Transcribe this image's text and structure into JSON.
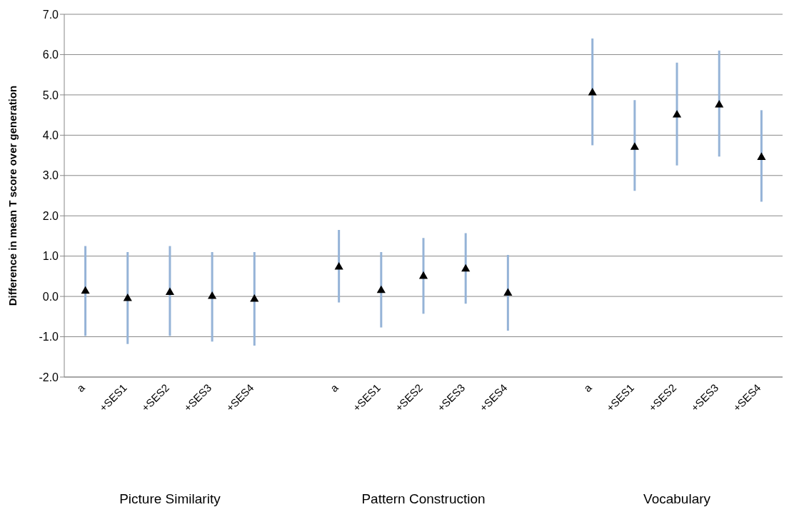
{
  "chart_data": {
    "type": "scatter",
    "ylabel": "Difference in mean T score  over generation",
    "categories": [
      "a",
      "+SES1",
      "+SES2",
      "+SES3",
      "+SES4",
      null,
      "a",
      "+SES1",
      "+SES2",
      "+SES3",
      "+SES4",
      null,
      "a",
      "+SES1",
      "+SES2",
      "+SES3",
      "+SES4"
    ],
    "values": [
      0.13,
      -0.05,
      0.1,
      0.0,
      -0.07,
      null,
      0.73,
      0.15,
      0.5,
      0.68,
      0.08,
      null,
      5.05,
      3.7,
      4.5,
      4.75,
      3.45
    ],
    "errors": [
      [
        -0.98,
        1.25
      ],
      [
        -1.18,
        1.1
      ],
      [
        -0.98,
        1.25
      ],
      [
        -1.12,
        1.1
      ],
      [
        -1.22,
        1.1
      ],
      null,
      [
        -0.15,
        1.65
      ],
      [
        -0.77,
        1.1
      ],
      [
        -0.43,
        1.45
      ],
      [
        -0.18,
        1.57
      ],
      [
        -0.85,
        1.03
      ],
      null,
      [
        3.75,
        6.4
      ],
      [
        2.62,
        4.87
      ],
      [
        3.25,
        5.8
      ],
      [
        3.47,
        6.1
      ],
      [
        2.35,
        4.62
      ]
    ],
    "color": "#000000",
    "marker": "triangle",
    "grid": "y",
    "ylim": [
      -2,
      7
    ],
    "yticks": [
      {
        "value": -2,
        "label": "-2.0"
      },
      {
        "value": -1,
        "label": "-1.0"
      },
      {
        "value": 0,
        "label": "0.0"
      },
      {
        "value": 1,
        "label": "1.0"
      },
      {
        "value": 2,
        "label": "2.0"
      },
      {
        "value": 3,
        "label": "3.0"
      },
      {
        "value": 4,
        "label": "4.0"
      },
      {
        "value": 5,
        "label": "5.0"
      },
      {
        "value": 6,
        "label": "6.0"
      },
      {
        "value": 7,
        "label": "7.0"
      }
    ],
    "annotations": [
      "Picture Similarity",
      "Pattern Construction",
      "Vocabulary"
    ]
  }
}
